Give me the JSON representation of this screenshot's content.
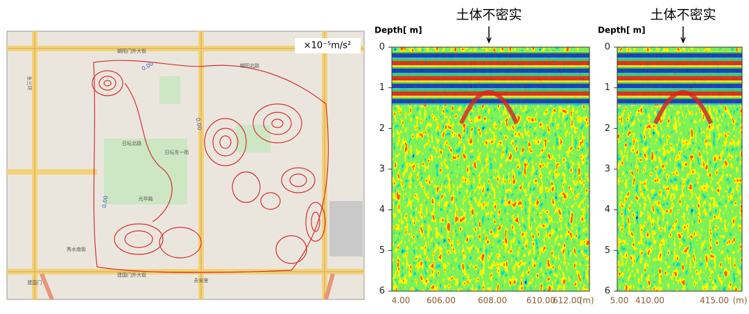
{
  "map": {
    "unit": "×10⁻⁵m/s²",
    "streets": [
      "朝阳门外大街",
      "朝阳北路",
      "日坛北路",
      "光华路",
      "建国门外大街",
      "建国门",
      "永安里",
      "东三环",
      "秀水南街",
      "日坛东一街"
    ]
  },
  "radargrams": [
    {
      "title": "土体不密实",
      "axis_label": "Depth[ m]",
      "depth_ticks": [
        "0",
        "1",
        "2",
        "3",
        "4",
        "5",
        "6"
      ],
      "distance_ticks": [
        "4.00",
        "606.00",
        "608.00",
        "610.00",
        "612.00"
      ],
      "distance_unit": "(m)"
    },
    {
      "title": "土体不密实",
      "axis_label": "Depth[ m]",
      "depth_ticks": [
        "0",
        "1",
        "2",
        "3",
        "4",
        "5",
        "6"
      ],
      "distance_ticks": [
        "5.00",
        "410.00",
        "415.00"
      ],
      "distance_unit": "(m)"
    }
  ]
}
